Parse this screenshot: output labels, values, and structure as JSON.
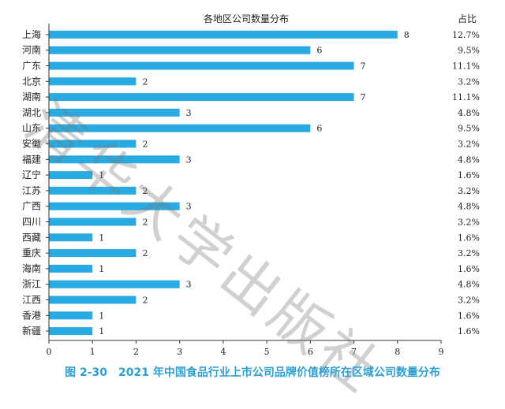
{
  "chart_data": {
    "type": "bar",
    "orientation": "horizontal",
    "title": "各地区公司数量分布",
    "share_header": "占比",
    "categories": [
      "上海",
      "河南",
      "广东",
      "北京",
      "湖南",
      "湖北",
      "山东",
      "安徽",
      "福建",
      "辽宁",
      "江苏",
      "广西",
      "四川",
      "西藏",
      "重庆",
      "海南",
      "浙江",
      "江西",
      "香港",
      "新疆"
    ],
    "values": [
      8,
      6,
      7,
      2,
      7,
      3,
      6,
      2,
      3,
      1,
      2,
      3,
      2,
      1,
      2,
      1,
      3,
      2,
      1,
      1
    ],
    "shares": [
      "12.7%",
      "9.5%",
      "11.1%",
      "3.2%",
      "11.1%",
      "4.8%",
      "9.5%",
      "3.2%",
      "4.8%",
      "1.6%",
      "3.2%",
      "4.8%",
      "3.2%",
      "1.6%",
      "3.2%",
      "1.6%",
      "4.8%",
      "3.2%",
      "1.6%",
      "1.6%"
    ],
    "xlim": [
      0,
      9
    ],
    "xticks": [
      0,
      1,
      2,
      3,
      4,
      5,
      6,
      7,
      8,
      9
    ],
    "bar_color": "#29abe2",
    "grid": false
  },
  "caption": "图 2-30　2021 年中国食品行业上市公司品牌价值榜所在区域公司数量分布",
  "watermark": "清华大学出版社"
}
